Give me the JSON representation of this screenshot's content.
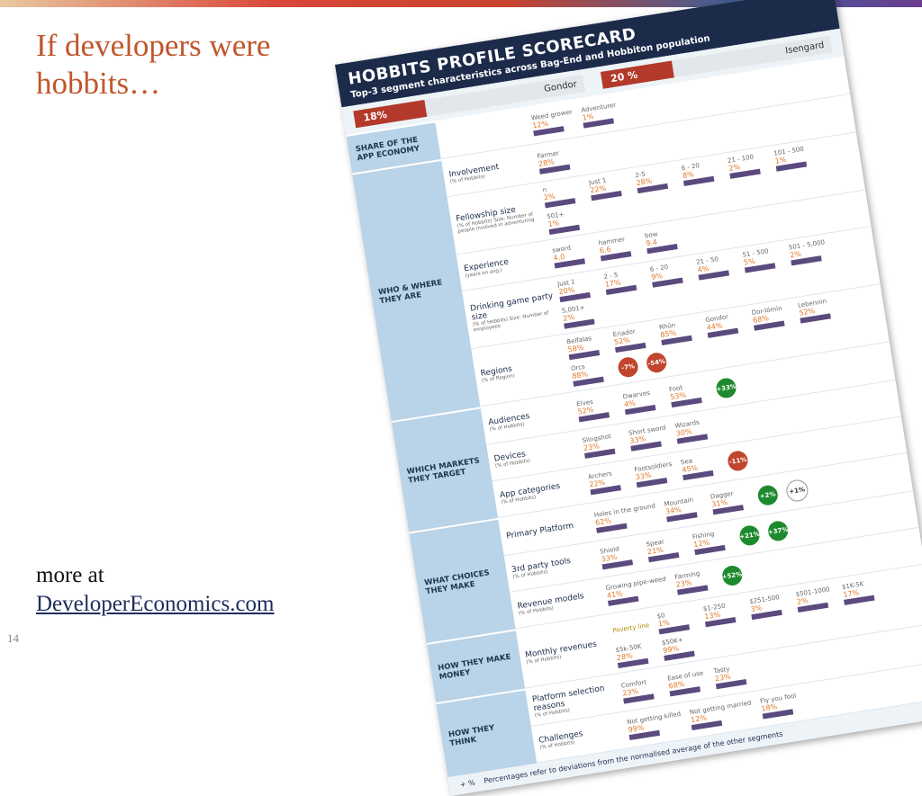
{
  "slide": {
    "title": "If developers were hobbits…",
    "more": "more at",
    "link": "DeveloperEconomics.com",
    "page_number": "14"
  },
  "scorecard": {
    "title": "HOBBITS PROFILE SCORECARD",
    "subtitle": "Top-3 segment characteristics across Bag-End and Hobbiton population",
    "segments": [
      {
        "value": "18%",
        "name": "Gondor"
      },
      {
        "value": "20 %",
        "name": "Isengard"
      }
    ],
    "sections": [
      {
        "heading": "SHARE OF THE APP ECONOMY",
        "rows": [
          {
            "label": "",
            "items": [
              {
                "name": "Weed grower",
                "value": "12%"
              },
              {
                "name": "Adventurer",
                "value": "1%"
              }
            ]
          }
        ]
      },
      {
        "heading": "WHO & WHERE THEY ARE",
        "rows": [
          {
            "label": "Involvement",
            "sub": "(% of Hobbits)",
            "items": [
              {
                "name": "Farmer",
                "value": "28%"
              }
            ]
          },
          {
            "label": "Fellowship size",
            "sub": "(% of Hobbits) Size: Number of people involved in adventuring",
            "items": [
              {
                "name": "n",
                "value": "2%"
              },
              {
                "name": "Just 1",
                "value": "22%"
              },
              {
                "name": "2-5",
                "value": "28%"
              },
              {
                "name": "6 - 20",
                "value": "8%"
              },
              {
                "name": "21 - 100",
                "value": "2%"
              },
              {
                "name": "101 - 500",
                "value": "1%"
              },
              {
                "name": "501+",
                "value": "1%"
              }
            ]
          },
          {
            "label": "Experience",
            "sub": "(years on avg.)",
            "items": [
              {
                "name": "sword",
                "value": "4.0"
              },
              {
                "name": "hammer",
                "value": "6.6"
              },
              {
                "name": "bow",
                "value": "9.4"
              }
            ]
          },
          {
            "label": "Drinking game party size",
            "sub": "(% of Hobbits) Size: Number of employees",
            "items": [
              {
                "name": "Just 1",
                "value": "20%"
              },
              {
                "name": "2 - 5",
                "value": "17%"
              },
              {
                "name": "6 - 20",
                "value": "9%"
              },
              {
                "name": "21 - 50",
                "value": "4%"
              },
              {
                "name": "51 - 500",
                "value": "5%"
              },
              {
                "name": "501 - 5,000",
                "value": "2%"
              },
              {
                "name": "5,001+",
                "value": "2%"
              }
            ]
          },
          {
            "label": "Regions",
            "sub": "(% of Region)",
            "items": [
              {
                "name": "Belfalas",
                "value": "58%"
              },
              {
                "name": "Eriador",
                "value": "52%"
              },
              {
                "name": "Rhûn",
                "value": "85%"
              },
              {
                "name": "Gondor",
                "value": "44%"
              },
              {
                "name": "Dor-lómin",
                "value": "68%"
              },
              {
                "name": "Lebennin",
                "value": "52%"
              },
              {
                "name": "Orcs",
                "value": "88%"
              }
            ],
            "badges": [
              {
                "value": "-7%",
                "color": "#c0452c"
              },
              {
                "value": "-54%",
                "color": "#c0452c"
              }
            ]
          }
        ]
      },
      {
        "heading": "WHICH MARKETS THEY TARGET",
        "rows": [
          {
            "label": "Audiences",
            "sub": "(% of Hobbits)",
            "items": [
              {
                "name": "Elves",
                "value": "52%"
              },
              {
                "name": "Dwarves",
                "value": "4%"
              },
              {
                "name": "Foot",
                "value": "53%"
              }
            ],
            "badges": [
              {
                "value": "+33%",
                "color": "#1e8a2e"
              }
            ]
          },
          {
            "label": "Devices",
            "sub": "(% of Hobbits)",
            "items": [
              {
                "name": "Slingshot",
                "value": "23%"
              },
              {
                "name": "Short sword",
                "value": "33%"
              },
              {
                "name": "Wizards",
                "value": "30%"
              }
            ]
          },
          {
            "label": "App categories",
            "sub": "(% of Hobbits)",
            "items": [
              {
                "name": "Archers",
                "value": "22%"
              },
              {
                "name": "Footsoldiers",
                "value": "33%"
              },
              {
                "name": "Sea",
                "value": "45%"
              }
            ],
            "badges": [
              {
                "value": "-11%",
                "color": "#c0452c"
              }
            ]
          }
        ]
      },
      {
        "heading": "WHAT CHOICES THEY MAKE",
        "rows": [
          {
            "label": "Primary Platform",
            "items": [
              {
                "name": "Holes in the ground",
                "value": "62%"
              },
              {
                "name": "Mountain",
                "value": "34%"
              },
              {
                "name": "Dagger",
                "value": "31%"
              }
            ],
            "badges": [
              {
                "value": "+2%",
                "color": "#1e8a2e"
              },
              {
                "value": "+1%",
                "color": "#ffffff"
              }
            ]
          },
          {
            "label": "3rd party tools",
            "sub": "(% of Hobbits)",
            "items": [
              {
                "name": "Shield",
                "value": "33%"
              },
              {
                "name": "Spear",
                "value": "21%"
              },
              {
                "name": "Fishing",
                "value": "12%"
              }
            ],
            "badges": [
              {
                "value": "+21%",
                "color": "#1e8a2e"
              },
              {
                "value": "+37%",
                "color": "#1e8a2e"
              }
            ]
          },
          {
            "label": "Revenue models",
            "sub": "(% of Hobbits)",
            "items": [
              {
                "name": "Growing pipe-weed",
                "value": "41%"
              },
              {
                "name": "Farming",
                "value": "23%"
              }
            ],
            "badges": [
              {
                "value": "+52%",
                "color": "#1e8a2e"
              }
            ]
          }
        ]
      },
      {
        "heading": "HOW THEY MAKE MONEY",
        "rows": [
          {
            "label": "Monthly revenues",
            "sub": "(% of Hobbits)",
            "note": "Poverty line",
            "items": [
              {
                "name": "$0",
                "value": "1%"
              },
              {
                "name": "$1-250",
                "value": "13%"
              },
              {
                "name": "$251-500",
                "value": "3%"
              },
              {
                "name": "$501-1000",
                "value": "2%"
              },
              {
                "name": "$1K-5K",
                "value": "17%"
              },
              {
                "name": "$5k-50K",
                "value": "28%"
              },
              {
                "name": "$50K+",
                "value": "99%"
              }
            ]
          }
        ]
      },
      {
        "heading": "HOW THEY THINK",
        "rows": [
          {
            "label": "Platform selection reasons",
            "sub": "(% of Hobbits)",
            "items": [
              {
                "name": "Comfort",
                "value": "23%"
              },
              {
                "name": "Ease of use",
                "value": "68%"
              },
              {
                "name": "Tasty",
                "value": "23%"
              }
            ]
          },
          {
            "label": "Challenges",
            "sub": "(% of Hobbits)",
            "items": [
              {
                "name": "Not getting killed",
                "value": "99%"
              },
              {
                "name": "Not getting married",
                "value": "12%"
              },
              {
                "name": "Fly you fool",
                "value": "18%"
              }
            ]
          }
        ]
      }
    ],
    "footnote_symbol": "+ %",
    "footnote": "Percentages refer to deviations from the normalised average of the other segments"
  }
}
